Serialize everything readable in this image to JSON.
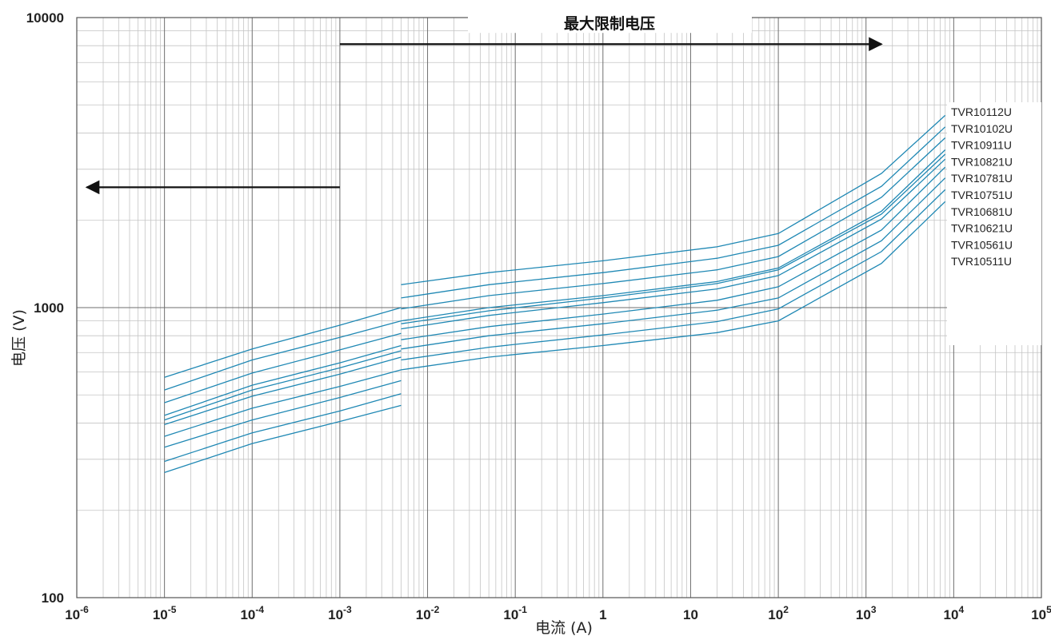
{
  "chart_data": {
    "type": "line",
    "title": "",
    "xlabel": "电流 (A)",
    "ylabel": "电压 (V)",
    "x_scale": "log",
    "y_scale": "log",
    "xlim": [
      1e-06,
      100000.0
    ],
    "ylim": [
      100,
      10000
    ],
    "grid": true,
    "legend_placement": "right",
    "x_tick_labels": [
      {
        "base": "10",
        "exp": "-6"
      },
      {
        "base": "10",
        "exp": "-5"
      },
      {
        "base": "10",
        "exp": "-4"
      },
      {
        "base": "10",
        "exp": "-3"
      },
      {
        "base": "10",
        "exp": "-2"
      },
      {
        "base": "10",
        "exp": "-1"
      },
      {
        "base": "1",
        "exp": ""
      },
      {
        "base": "10",
        "exp": ""
      },
      {
        "base": "10",
        "exp": "2"
      },
      {
        "base": "10",
        "exp": "3"
      },
      {
        "base": "10",
        "exp": "4"
      },
      {
        "base": "10",
        "exp": "5"
      }
    ],
    "y_tick_labels": [
      "100",
      "1000",
      "10000"
    ],
    "annotations": [
      {
        "text": "最大限制电压",
        "type": "arrow-right",
        "from_x": 0.001,
        "to_x": 1500,
        "y": 8100
      },
      {
        "text": "",
        "type": "arrow-left",
        "from_x": 0.001,
        "to_x": 1.3e-06,
        "y": 2600
      }
    ],
    "series": [
      {
        "name": "TVR10112U",
        "low": [
          [
            1e-05,
            575
          ],
          [
            0.0001,
            720
          ],
          [
            0.001,
            870
          ],
          [
            0.005,
            1000
          ]
        ],
        "high": [
          [
            0.005,
            1200
          ],
          [
            0.05,
            1320
          ],
          [
            1,
            1450
          ],
          [
            20,
            1620
          ],
          [
            100,
            1800
          ],
          [
            1500,
            2900
          ],
          [
            8000,
            4600
          ]
        ]
      },
      {
        "name": "TVR10102U",
        "low": [
          [
            1e-05,
            520
          ],
          [
            0.0001,
            660
          ],
          [
            0.001,
            790
          ],
          [
            0.005,
            900
          ]
        ],
        "high": [
          [
            0.005,
            1080
          ],
          [
            0.05,
            1200
          ],
          [
            1,
            1320
          ],
          [
            20,
            1480
          ],
          [
            100,
            1640
          ],
          [
            1500,
            2620
          ],
          [
            8000,
            4200
          ]
        ]
      },
      {
        "name": "TVR10911U",
        "low": [
          [
            1e-05,
            470
          ],
          [
            0.0001,
            595
          ],
          [
            0.001,
            715
          ],
          [
            0.005,
            815
          ]
        ],
        "high": [
          [
            0.005,
            990
          ],
          [
            0.05,
            1100
          ],
          [
            1,
            1210
          ],
          [
            20,
            1350
          ],
          [
            100,
            1500
          ],
          [
            1500,
            2400
          ],
          [
            8000,
            3850
          ]
        ]
      },
      {
        "name": "TVR10821U",
        "low": [
          [
            1e-05,
            425
          ],
          [
            0.0001,
            540
          ],
          [
            0.001,
            645
          ],
          [
            0.005,
            740
          ]
        ],
        "high": [
          [
            0.005,
            900
          ],
          [
            0.05,
            1000
          ],
          [
            1,
            1100
          ],
          [
            20,
            1230
          ],
          [
            100,
            1370
          ],
          [
            1500,
            2150
          ],
          [
            8000,
            3500
          ]
        ]
      },
      {
        "name": "TVR10781U",
        "low": [
          [
            1e-05,
            410
          ],
          [
            0.0001,
            520
          ],
          [
            0.001,
            620
          ],
          [
            0.005,
            710
          ]
        ],
        "high": [
          [
            0.005,
            880
          ],
          [
            0.05,
            975
          ],
          [
            1,
            1080
          ],
          [
            20,
            1210
          ],
          [
            100,
            1350
          ],
          [
            1500,
            2100
          ],
          [
            8000,
            3380
          ]
        ]
      },
      {
        "name": "TVR10751U",
        "low": [
          [
            1e-05,
            395
          ],
          [
            0.0001,
            495
          ],
          [
            0.001,
            590
          ],
          [
            0.005,
            675
          ]
        ],
        "high": [
          [
            0.005,
            845
          ],
          [
            0.05,
            940
          ],
          [
            1,
            1040
          ],
          [
            20,
            1160
          ],
          [
            100,
            1290
          ],
          [
            1500,
            2020
          ],
          [
            8000,
            3250
          ]
        ]
      },
      {
        "name": "TVR10681U",
        "low": [
          [
            1e-05,
            360
          ],
          [
            0.0001,
            450
          ],
          [
            0.001,
            535
          ],
          [
            0.005,
            610
          ]
        ],
        "high": [
          [
            0.005,
            775
          ],
          [
            0.05,
            860
          ],
          [
            1,
            950
          ],
          [
            20,
            1060
          ],
          [
            100,
            1180
          ],
          [
            1500,
            1850
          ],
          [
            8000,
            3050
          ]
        ]
      },
      {
        "name": "TVR10621U",
        "low": [
          [
            1e-05,
            330
          ],
          [
            0.0001,
            410
          ],
          [
            0.001,
            490
          ],
          [
            0.005,
            560
          ]
        ],
        "high": [
          [
            0.005,
            720
          ],
          [
            0.05,
            800
          ],
          [
            1,
            880
          ],
          [
            20,
            980
          ],
          [
            100,
            1080
          ],
          [
            1500,
            1700
          ],
          [
            8000,
            2800
          ]
        ]
      },
      {
        "name": "TVR10561U",
        "low": [
          [
            1e-05,
            295
          ],
          [
            0.0001,
            370
          ],
          [
            0.001,
            440
          ],
          [
            0.005,
            505
          ]
        ],
        "high": [
          [
            0.005,
            660
          ],
          [
            0.05,
            730
          ],
          [
            1,
            805
          ],
          [
            20,
            895
          ],
          [
            100,
            990
          ],
          [
            1500,
            1560
          ],
          [
            8000,
            2550
          ]
        ]
      },
      {
        "name": "TVR10511U",
        "low": [
          [
            1e-05,
            270
          ],
          [
            0.0001,
            340
          ],
          [
            0.001,
            405
          ],
          [
            0.005,
            460
          ]
        ],
        "high": [
          [
            0.005,
            610
          ],
          [
            0.05,
            675
          ],
          [
            1,
            740
          ],
          [
            20,
            820
          ],
          [
            100,
            900
          ],
          [
            1500,
            1420
          ],
          [
            8000,
            2320
          ]
        ]
      }
    ]
  },
  "colors": {
    "series": "#1f88b4",
    "grid_major": "#6f6f6f",
    "grid_minor": "#c4c4c4",
    "text": "#222222"
  }
}
